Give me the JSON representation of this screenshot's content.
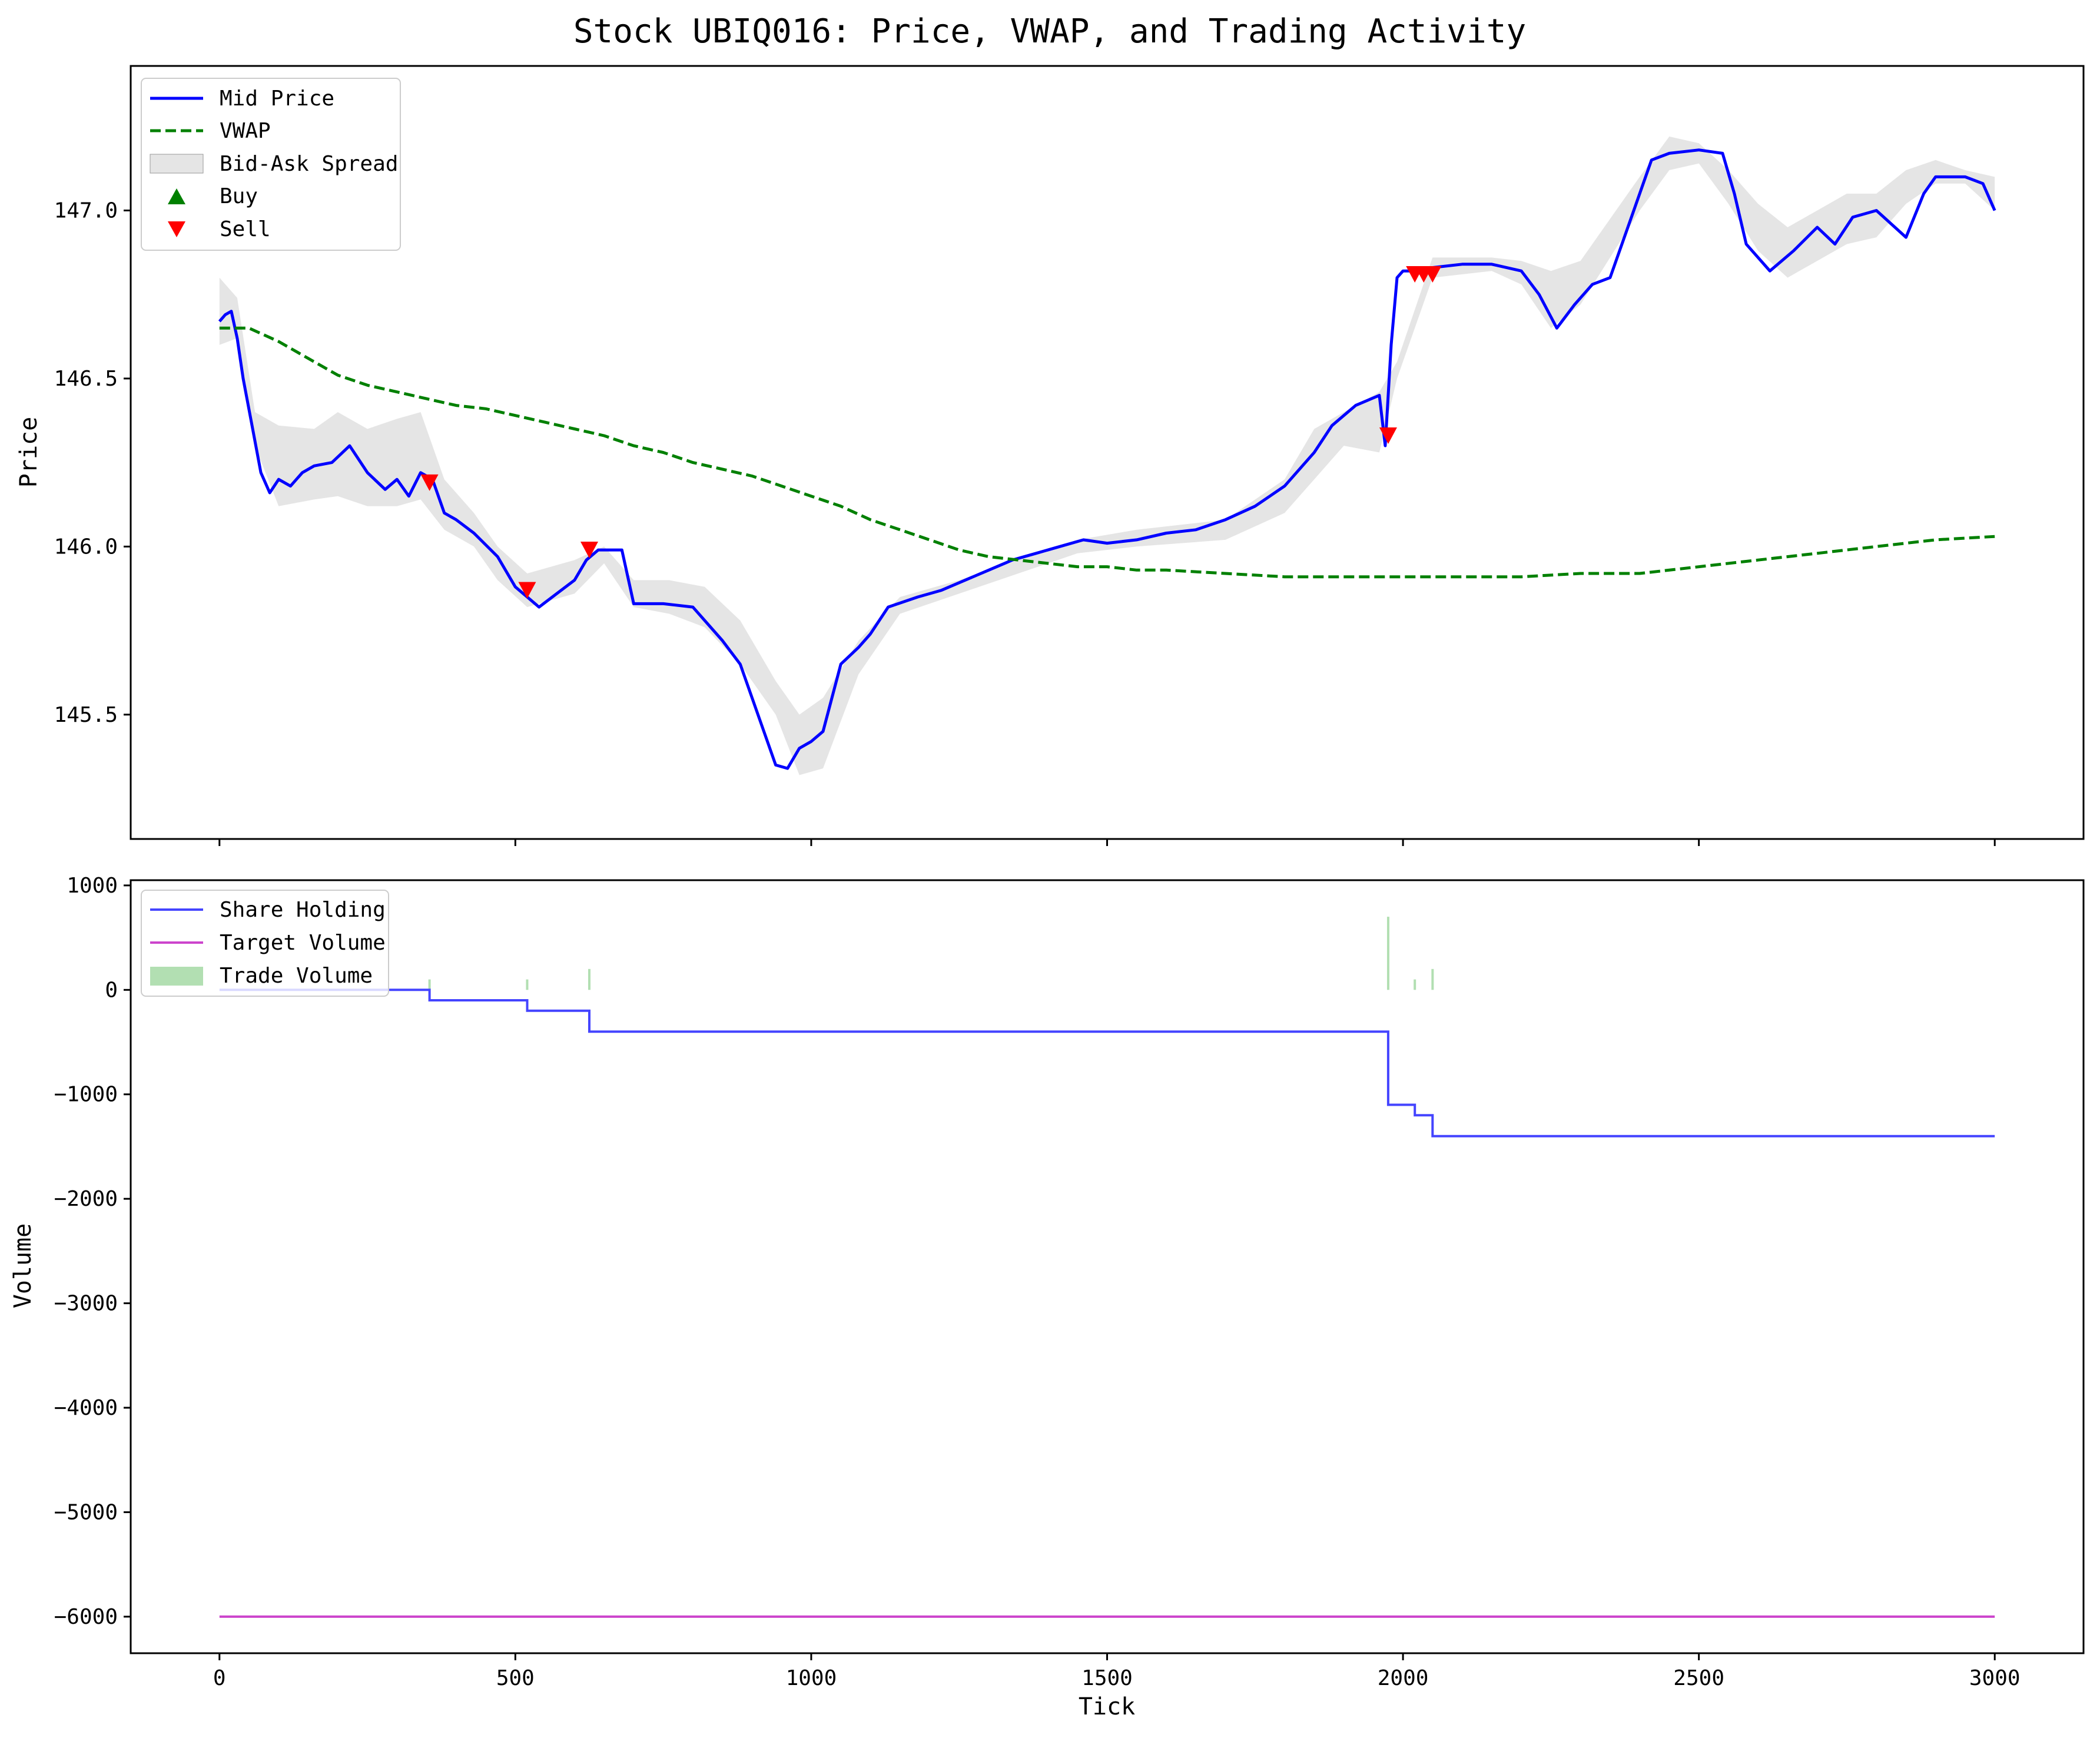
{
  "chart_data": [
    {
      "type": "line",
      "title": "Stock UBIQ016: Price, VWAP, and Trading Activity",
      "xlabel": "",
      "ylabel": "Price",
      "xlim": [
        -150,
        3150
      ],
      "ylim": [
        145.13,
        147.43
      ],
      "xticks": [
        0,
        500,
        1000,
        1500,
        2000,
        2500,
        3000
      ],
      "yticks": [
        145.5,
        146.0,
        146.5,
        147.0
      ],
      "ytick_labels": [
        "145.5",
        "146.0",
        "146.5",
        "147.0"
      ],
      "legend_position": "upper-left",
      "legend": [
        "Mid Price",
        "VWAP",
        "Bid-Ask Spread",
        "Buy",
        "Sell"
      ],
      "series": [
        {
          "name": "Mid Price",
          "color": "#0000ff",
          "style": "solid",
          "x": [
            0,
            10,
            20,
            30,
            40,
            55,
            70,
            85,
            100,
            120,
            140,
            160,
            190,
            220,
            250,
            280,
            300,
            320,
            340,
            360,
            380,
            400,
            430,
            470,
            500,
            520,
            540,
            570,
            600,
            620,
            640,
            680,
            700,
            750,
            800,
            850,
            880,
            900,
            920,
            940,
            960,
            980,
            1000,
            1020,
            1050,
            1080,
            1100,
            1130,
            1180,
            1220,
            1260,
            1300,
            1340,
            1380,
            1420,
            1460,
            1500,
            1550,
            1600,
            1650,
            1700,
            1750,
            1800,
            1850,
            1880,
            1920,
            1960,
            1970,
            1980,
            1990,
            2000,
            2020,
            2050,
            2100,
            2150,
            2200,
            2230,
            2260,
            2290,
            2320,
            2350,
            2390,
            2420,
            2450,
            2500,
            2540,
            2560,
            2580,
            2620,
            2660,
            2700,
            2730,
            2760,
            2800,
            2850,
            2880,
            2900,
            2950,
            2980,
            3000
          ],
          "values": [
            146.67,
            146.69,
            146.7,
            146.62,
            146.5,
            146.36,
            146.22,
            146.16,
            146.2,
            146.18,
            146.22,
            146.24,
            146.25,
            146.3,
            146.22,
            146.17,
            146.2,
            146.15,
            146.22,
            146.2,
            146.1,
            146.08,
            146.04,
            145.97,
            145.88,
            145.85,
            145.82,
            145.86,
            145.9,
            145.96,
            145.99,
            145.99,
            145.83,
            145.83,
            145.82,
            145.72,
            145.65,
            145.55,
            145.45,
            145.35,
            145.34,
            145.4,
            145.42,
            145.45,
            145.65,
            145.7,
            145.74,
            145.82,
            145.85,
            145.87,
            145.9,
            145.93,
            145.96,
            145.98,
            146.0,
            146.02,
            146.01,
            146.02,
            146.04,
            146.05,
            146.08,
            146.12,
            146.18,
            146.28,
            146.36,
            146.42,
            146.45,
            146.3,
            146.6,
            146.8,
            146.82,
            146.82,
            146.83,
            146.84,
            146.84,
            146.82,
            146.75,
            146.65,
            146.72,
            146.78,
            146.8,
            147.0,
            147.15,
            147.17,
            147.18,
            147.17,
            147.05,
            146.9,
            146.82,
            146.88,
            146.95,
            146.9,
            146.98,
            147.0,
            146.92,
            147.05,
            147.1,
            147.1,
            147.08,
            147.0
          ]
        },
        {
          "name": "VWAP",
          "color": "#008000",
          "style": "dashed",
          "x": [
            0,
            50,
            100,
            150,
            200,
            250,
            300,
            350,
            400,
            450,
            500,
            550,
            600,
            650,
            700,
            750,
            800,
            850,
            900,
            950,
            1000,
            1050,
            1100,
            1150,
            1200,
            1250,
            1300,
            1350,
            1400,
            1450,
            1500,
            1550,
            1600,
            1700,
            1800,
            1900,
            2000,
            2100,
            2200,
            2300,
            2400,
            2500,
            2600,
            2700,
            2800,
            2900,
            3000
          ],
          "values": [
            146.65,
            146.65,
            146.61,
            146.56,
            146.51,
            146.48,
            146.46,
            146.44,
            146.42,
            146.41,
            146.39,
            146.37,
            146.35,
            146.33,
            146.3,
            146.28,
            146.25,
            146.23,
            146.21,
            146.18,
            146.15,
            146.12,
            146.08,
            146.05,
            146.02,
            145.99,
            145.97,
            145.96,
            145.95,
            145.94,
            145.94,
            145.93,
            145.93,
            145.92,
            145.91,
            145.91,
            145.91,
            145.91,
            145.91,
            145.92,
            145.92,
            145.94,
            145.96,
            145.98,
            146.0,
            146.02,
            146.03
          ]
        }
      ],
      "spread_band": {
        "name": "Bid-Ask Spread",
        "color": "#d3d3d3",
        "x": [
          0,
          30,
          60,
          100,
          160,
          200,
          250,
          300,
          340,
          380,
          430,
          470,
          520,
          600,
          650,
          700,
          760,
          820,
          880,
          940,
          980,
          1020,
          1080,
          1150,
          1250,
          1350,
          1450,
          1550,
          1700,
          1800,
          1850,
          1900,
          1960,
          1990,
          2050,
          2150,
          2200,
          2250,
          2300,
          2400,
          2450,
          2500,
          2550,
          2600,
          2650,
          2700,
          2750,
          2800,
          2850,
          2900,
          2950,
          3000
        ],
        "upper": [
          146.8,
          146.74,
          146.4,
          146.36,
          146.35,
          146.4,
          146.35,
          146.38,
          146.4,
          146.2,
          146.1,
          146.0,
          145.92,
          145.96,
          146.0,
          145.9,
          145.9,
          145.88,
          145.78,
          145.6,
          145.5,
          145.55,
          145.72,
          145.85,
          145.9,
          145.96,
          146.02,
          146.05,
          146.08,
          146.2,
          146.35,
          146.4,
          146.46,
          146.55,
          146.86,
          146.86,
          146.85,
          146.82,
          146.85,
          147.1,
          147.22,
          147.2,
          147.12,
          147.02,
          146.95,
          147.0,
          147.05,
          147.05,
          147.12,
          147.15,
          147.12,
          147.1
        ],
        "lower": [
          146.6,
          146.62,
          146.3,
          146.12,
          146.14,
          146.15,
          146.12,
          146.12,
          146.14,
          146.05,
          146.0,
          145.9,
          145.82,
          145.86,
          145.95,
          145.82,
          145.8,
          145.76,
          145.65,
          145.5,
          145.32,
          145.34,
          145.62,
          145.8,
          145.86,
          145.92,
          145.98,
          146.0,
          146.02,
          146.1,
          146.2,
          146.3,
          146.28,
          146.5,
          146.8,
          146.82,
          146.78,
          146.65,
          146.72,
          147.0,
          147.12,
          147.14,
          147.02,
          146.88,
          146.8,
          146.85,
          146.9,
          146.92,
          147.02,
          147.08,
          147.08,
          147.0
        ]
      },
      "buy_markers": {
        "name": "Buy",
        "color": "#008000",
        "x": [],
        "values": []
      },
      "sell_markers": {
        "name": "Sell",
        "color": "#ff0000",
        "x": [
          355,
          520,
          625,
          1975,
          2020,
          2035,
          2050
        ],
        "values": [
          146.19,
          145.87,
          145.99,
          146.33,
          146.81,
          146.81,
          146.81
        ]
      }
    },
    {
      "type": "line",
      "title": "",
      "xlabel": "Tick",
      "ylabel": "Volume",
      "xlim": [
        -150,
        3150
      ],
      "ylim": [
        -6350,
        1050
      ],
      "xticks": [
        0,
        500,
        1000,
        1500,
        2000,
        2500,
        3000
      ],
      "xtick_labels": [
        "0",
        "500",
        "1000",
        "1500",
        "2000",
        "2500",
        "3000"
      ],
      "yticks": [
        1000,
        0,
        -1000,
        -2000,
        -3000,
        -4000,
        -5000,
        -6000
      ],
      "ytick_labels": [
        "1000",
        "0",
        "−1000",
        "−2000",
        "−3000",
        "−4000",
        "−5000",
        "−6000"
      ],
      "legend_position": "upper-left",
      "legend": [
        "Share Holding",
        "Target Volume",
        "Trade Volume"
      ],
      "series": [
        {
          "name": "Share Holding",
          "color": "#4444ff",
          "style": "step",
          "x": [
            0,
            355,
            355,
            520,
            520,
            625,
            625,
            1975,
            1975,
            2020,
            2020,
            2050,
            2050,
            3000
          ],
          "values": [
            0,
            0,
            -100,
            -100,
            -200,
            -200,
            -400,
            -400,
            -1100,
            -1100,
            -1200,
            -1200,
            -1400,
            -1400
          ]
        },
        {
          "name": "Target Volume",
          "color": "#cc44cc",
          "style": "solid",
          "x": [
            0,
            3000
          ],
          "values": [
            -6000,
            -6000
          ]
        }
      ],
      "bars": {
        "name": "Trade Volume",
        "color": "#b2dfb2",
        "x": [
          355,
          520,
          625,
          1975,
          2020,
          2050
        ],
        "values": [
          100,
          100,
          200,
          700,
          100,
          200
        ]
      }
    }
  ]
}
